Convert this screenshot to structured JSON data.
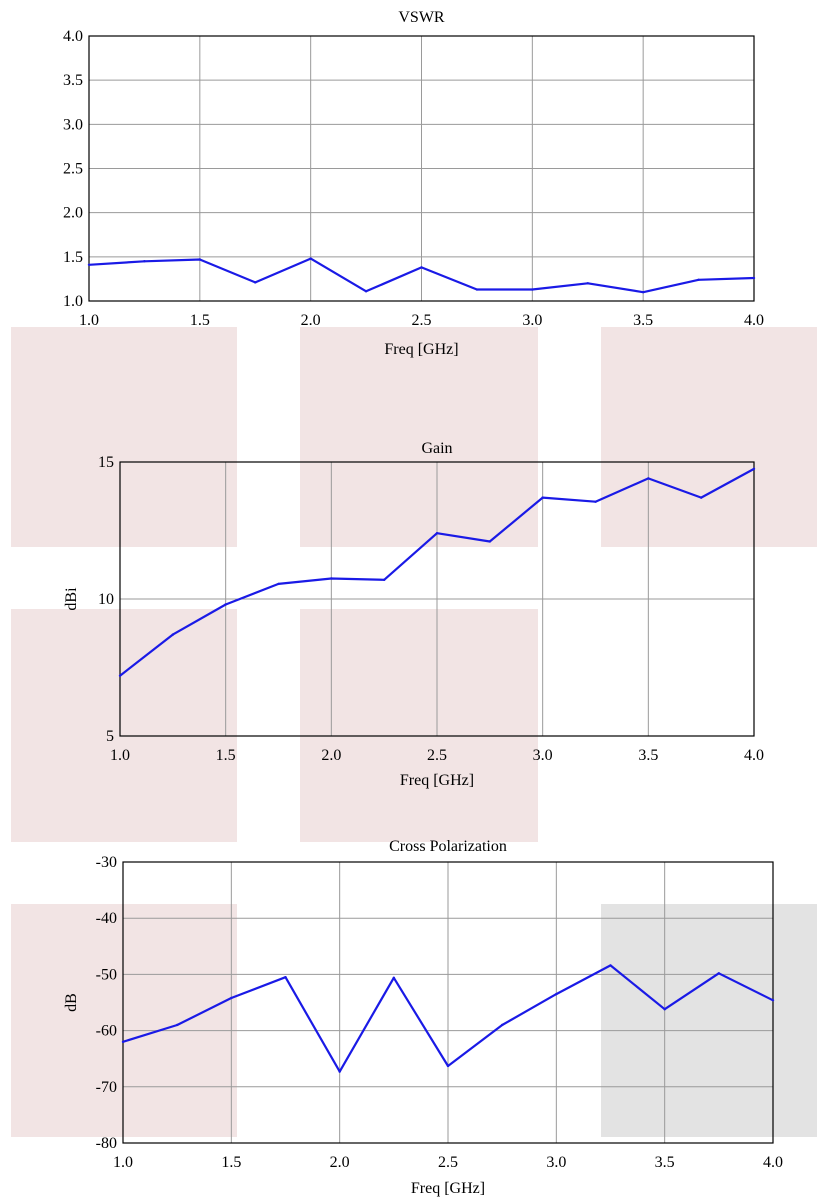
{
  "colors": {
    "series": "#1a1ae6",
    "overlay_pink": "#f2e4e4",
    "overlay_gray": "#e3e3e3",
    "grid": "#9a9a9a"
  },
  "chart_data": [
    {
      "type": "line",
      "title": "VSWR",
      "xlabel": "Freq [GHz]",
      "ylabel": "",
      "xlim": [
        1.0,
        4.0
      ],
      "ylim": [
        1.0,
        4.0
      ],
      "xticks": [
        "1.0",
        "1.5",
        "2.0",
        "2.5",
        "3.0",
        "3.5",
        "4.0"
      ],
      "yticks": [
        "1.0",
        "1.5",
        "2.0",
        "2.5",
        "3.0",
        "3.5",
        "4.0"
      ],
      "grid": true,
      "x": [
        1.0,
        1.25,
        1.5,
        1.75,
        2.0,
        2.25,
        2.5,
        2.75,
        3.0,
        3.25,
        3.5,
        3.75,
        4.0
      ],
      "values": [
        1.41,
        1.45,
        1.47,
        1.21,
        1.48,
        1.11,
        1.38,
        1.13,
        1.13,
        1.2,
        1.1,
        1.24,
        1.26
      ]
    },
    {
      "type": "line",
      "title": "Gain",
      "xlabel": "Freq [GHz]",
      "ylabel": "dBi",
      "xlim": [
        1.0,
        4.0
      ],
      "ylim": [
        5,
        15
      ],
      "xticks": [
        "1.0",
        "1.5",
        "2.0",
        "2.5",
        "3.0",
        "3.5",
        "4.0"
      ],
      "yticks": [
        "5",
        "10",
        "15"
      ],
      "grid": true,
      "x": [
        1.0,
        1.25,
        1.5,
        1.75,
        2.0,
        2.25,
        2.5,
        2.75,
        3.0,
        3.25,
        3.5,
        3.75,
        4.0
      ],
      "values": [
        7.2,
        8.7,
        9.8,
        10.55,
        10.75,
        10.7,
        12.4,
        12.1,
        13.7,
        13.55,
        14.4,
        13.7,
        14.75
      ]
    },
    {
      "type": "line",
      "title": "Cross Polarization",
      "xlabel": "Freq [GHz]",
      "ylabel": "dB",
      "xlim": [
        1.0,
        4.0
      ],
      "ylim": [
        -80,
        -30
      ],
      "xticks": [
        "1.0",
        "1.5",
        "2.0",
        "2.5",
        "3.0",
        "3.5",
        "4.0"
      ],
      "yticks": [
        "-80",
        "-70",
        "-60",
        "-50",
        "-40",
        "-30"
      ],
      "grid": true,
      "x": [
        1.0,
        1.25,
        1.5,
        1.75,
        2.0,
        2.25,
        2.5,
        2.75,
        3.0,
        3.25,
        3.5,
        3.75,
        4.0
      ],
      "values": [
        -62,
        -59,
        -54.2,
        -50.5,
        -67.3,
        -50.6,
        -66.3,
        -59,
        -53.5,
        -48.4,
        -56.2,
        -49.8,
        -54.6
      ]
    }
  ]
}
